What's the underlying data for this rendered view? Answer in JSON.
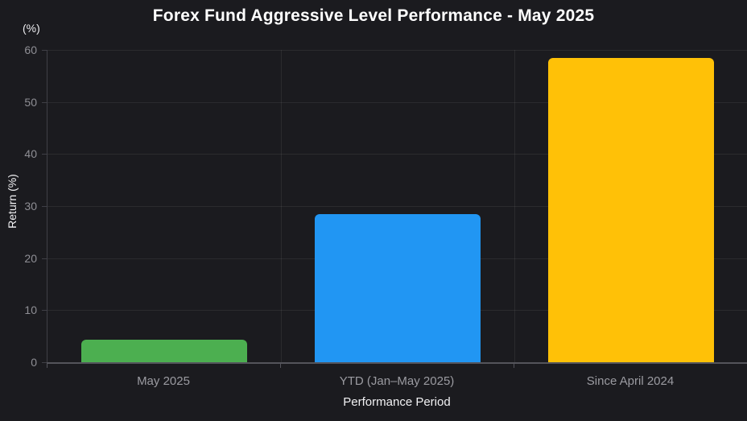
{
  "title": "Forex Fund Aggressive Level Performance - May 2025",
  "unit_label": "(%)",
  "chart_data": {
    "type": "bar",
    "title": "Forex Fund Aggressive Level Performance - May 2025",
    "categories": [
      "May 2025",
      "YTD (Jan–May 2025)",
      "Since April 2024"
    ],
    "values": [
      4.3,
      28.5,
      58.4
    ],
    "bar_colors": [
      "#4caf50",
      "#2196f3",
      "#ffc107"
    ],
    "xlabel": "Performance Period",
    "ylabel": "Return (%)",
    "y_unit": "(%)",
    "ylim": [
      0,
      60
    ],
    "yticks": [
      0,
      10,
      20,
      30,
      40,
      50,
      60
    ],
    "grid": true,
    "legend_position": "none",
    "background_color": "#1b1b1f",
    "text_color": "#ffffff",
    "tick_label_color": "#8f8f95"
  }
}
